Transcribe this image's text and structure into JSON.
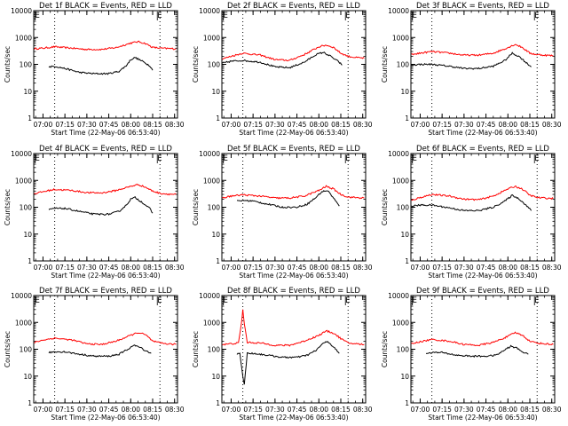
{
  "figure": {
    "ylabel": "Counts/sec",
    "xlabel": "Start Time (22-May-06 06:53:40)",
    "x_tick_labels": [
      "07:00",
      "07:15",
      "07:30",
      "07:45",
      "08:00",
      "08:15",
      "08:30"
    ],
    "y_tick_labels": [
      "1",
      "10",
      "100",
      "1000",
      "10000"
    ],
    "marker_E": "E",
    "colors": {
      "events": "#000000",
      "lld": "#ff0000"
    }
  },
  "chart_data": [
    {
      "type": "line",
      "title": "Det 1f BLACK = Events, RED = LLD",
      "xlabel": "Start Time (22-May-06 06:53:40)",
      "ylabel": "Counts/sec",
      "xlim": [
        "06:53:40",
        "08:32"
      ],
      "ylim": [
        1,
        10000
      ],
      "yscale": "log",
      "vlines": [
        "07:08",
        "08:20"
      ],
      "series": [
        {
          "name": "LLD",
          "color": "#ff0000",
          "x": [
            "06:54",
            "07:00",
            "07:08",
            "07:20",
            "07:30",
            "07:40",
            "07:50",
            "08:00",
            "08:05",
            "08:10",
            "08:15",
            "08:20",
            "08:25",
            "08:31"
          ],
          "y": [
            380,
            400,
            450,
            400,
            360,
            360,
            420,
            620,
            700,
            600,
            430,
            400,
            390,
            380
          ]
        },
        {
          "name": "Events",
          "color": "#000000",
          "x": [
            "07:04",
            "07:08",
            "07:15",
            "07:25",
            "07:35",
            "07:45",
            "07:52",
            "07:57",
            "08:00",
            "08:03",
            "08:08",
            "08:13",
            "08:15"
          ],
          "y": [
            80,
            85,
            70,
            50,
            45,
            45,
            55,
            90,
            150,
            180,
            130,
            90,
            60
          ]
        }
      ]
    },
    {
      "type": "line",
      "title": "Det 2f BLACK = Events, RED = LLD",
      "xlabel": "Start Time (22-May-06 06:53:40)",
      "ylabel": "Counts/sec",
      "xlim": [
        "06:53:40",
        "08:32"
      ],
      "ylim": [
        1,
        10000
      ],
      "yscale": "log",
      "vlines": [
        "07:08",
        "08:20"
      ],
      "series": [
        {
          "name": "LLD",
          "color": "#ff0000",
          "x": [
            "06:54",
            "07:00",
            "07:08",
            "07:20",
            "07:30",
            "07:40",
            "07:50",
            "08:00",
            "08:05",
            "08:10",
            "08:15",
            "08:20",
            "08:25",
            "08:31"
          ],
          "y": [
            160,
            200,
            260,
            220,
            150,
            140,
            230,
            450,
            520,
            430,
            260,
            200,
            180,
            170
          ]
        },
        {
          "name": "Events",
          "color": "#000000",
          "x": [
            "06:54",
            "07:00",
            "07:08",
            "07:20",
            "07:30",
            "07:40",
            "07:50",
            "07:58",
            "08:03",
            "08:08",
            "08:13",
            "08:16"
          ],
          "y": [
            110,
            130,
            140,
            120,
            80,
            75,
            120,
            230,
            280,
            200,
            130,
            95
          ]
        }
      ]
    },
    {
      "type": "line",
      "title": "Det 3f BLACK = Events, RED = LLD",
      "xlabel": "Start Time (22-May-06 06:53:40)",
      "ylabel": "Counts/sec",
      "xlim": [
        "06:53:40",
        "08:32"
      ],
      "ylim": [
        1,
        10000
      ],
      "yscale": "log",
      "vlines": [
        "07:08",
        "08:20"
      ],
      "series": [
        {
          "name": "LLD",
          "color": "#ff0000",
          "x": [
            "06:54",
            "07:00",
            "07:08",
            "07:20",
            "07:30",
            "07:40",
            "07:50",
            "08:00",
            "08:05",
            "08:10",
            "08:15",
            "08:20",
            "08:25",
            "08:31"
          ],
          "y": [
            230,
            260,
            300,
            260,
            220,
            220,
            260,
            420,
            560,
            420,
            260,
            230,
            220,
            210
          ]
        },
        {
          "name": "Events",
          "color": "#000000",
          "x": [
            "06:54",
            "07:00",
            "07:08",
            "07:20",
            "07:30",
            "07:40",
            "07:50",
            "07:58",
            "08:03",
            "08:08",
            "08:13",
            "08:16"
          ],
          "y": [
            95,
            100,
            100,
            85,
            70,
            70,
            85,
            140,
            260,
            190,
            110,
            80
          ]
        }
      ]
    },
    {
      "type": "line",
      "title": "Det 4f BLACK = Events, RED = LLD",
      "xlabel": "Start Time (22-May-06 06:53:40)",
      "ylabel": "Counts/sec",
      "xlim": [
        "06:53:40",
        "08:32"
      ],
      "ylim": [
        1,
        10000
      ],
      "yscale": "log",
      "vlines": [
        "07:08",
        "08:20"
      ],
      "series": [
        {
          "name": "LLD",
          "color": "#ff0000",
          "x": [
            "06:54",
            "07:00",
            "07:08",
            "07:20",
            "07:30",
            "07:40",
            "07:50",
            "08:00",
            "08:05",
            "08:10",
            "08:15",
            "08:20",
            "08:25",
            "08:31"
          ],
          "y": [
            320,
            380,
            460,
            420,
            350,
            340,
            420,
            600,
            700,
            560,
            400,
            330,
            310,
            300
          ]
        },
        {
          "name": "Events",
          "color": "#000000",
          "x": [
            "07:04",
            "07:08",
            "07:15",
            "07:25",
            "07:35",
            "07:45",
            "07:52",
            "07:57",
            "08:00",
            "08:03",
            "08:08",
            "08:13",
            "08:15"
          ],
          "y": [
            80,
            90,
            90,
            70,
            55,
            55,
            70,
            120,
            200,
            230,
            150,
            90,
            60
          ]
        }
      ]
    },
    {
      "type": "line",
      "title": "Det 5f BLACK = Events, RED = LLD",
      "xlabel": "Start Time (22-May-06 06:53:40)",
      "ylabel": "Counts/sec",
      "xlim": [
        "06:53:40",
        "08:32"
      ],
      "ylim": [
        1,
        10000
      ],
      "yscale": "log",
      "vlines": [
        "07:08",
        "08:20"
      ],
      "series": [
        {
          "name": "LLD",
          "color": "#ff0000",
          "x": [
            "06:54",
            "07:00",
            "07:08",
            "07:20",
            "07:30",
            "07:40",
            "07:50",
            "08:00",
            "08:05",
            "08:10",
            "08:15",
            "08:20",
            "08:25",
            "08:31"
          ],
          "y": [
            220,
            260,
            290,
            260,
            220,
            220,
            260,
            420,
            600,
            480,
            300,
            240,
            230,
            220
          ]
        },
        {
          "name": "Events",
          "color": "#000000",
          "x": [
            "07:04",
            "07:08",
            "07:15",
            "07:25",
            "07:35",
            "07:45",
            "07:52",
            "07:58",
            "08:02",
            "08:06",
            "08:10",
            "08:14"
          ],
          "y": [
            170,
            180,
            170,
            130,
            100,
            100,
            130,
            230,
            380,
            420,
            220,
            110
          ]
        }
      ]
    },
    {
      "type": "line",
      "title": "Det 6f BLACK = Events, RED = LLD",
      "xlabel": "Start Time (22-May-06 06:53:40)",
      "ylabel": "Counts/sec",
      "xlim": [
        "06:53:40",
        "08:32"
      ],
      "ylim": [
        1,
        10000
      ],
      "yscale": "log",
      "vlines": [
        "07:08",
        "08:20"
      ],
      "series": [
        {
          "name": "LLD",
          "color": "#ff0000",
          "x": [
            "06:54",
            "07:00",
            "07:08",
            "07:20",
            "07:30",
            "07:40",
            "07:50",
            "08:00",
            "08:05",
            "08:10",
            "08:15",
            "08:20",
            "08:25",
            "08:31"
          ],
          "y": [
            180,
            230,
            300,
            260,
            200,
            190,
            260,
            480,
            600,
            470,
            280,
            230,
            220,
            210
          ]
        },
        {
          "name": "Events",
          "color": "#000000",
          "x": [
            "06:54",
            "07:00",
            "07:08",
            "07:20",
            "07:30",
            "07:40",
            "07:50",
            "07:58",
            "08:03",
            "08:08",
            "08:13",
            "08:16"
          ],
          "y": [
            110,
            120,
            120,
            95,
            75,
            75,
            100,
            170,
            280,
            200,
            110,
            75
          ]
        }
      ]
    },
    {
      "type": "line",
      "title": "Det 7f BLACK = Events, RED = LLD",
      "xlabel": "Start Time (22-May-06 06:53:40)",
      "ylabel": "Counts/sec",
      "xlim": [
        "06:53:40",
        "08:32"
      ],
      "ylim": [
        1,
        10000
      ],
      "yscale": "log",
      "vlines": [
        "07:08",
        "08:20"
      ],
      "series": [
        {
          "name": "LLD",
          "color": "#ff0000",
          "x": [
            "06:54",
            "07:00",
            "07:08",
            "07:20",
            "07:30",
            "07:40",
            "07:50",
            "08:00",
            "08:05",
            "08:10",
            "08:15",
            "08:20",
            "08:25",
            "08:31"
          ],
          "y": [
            180,
            220,
            260,
            220,
            160,
            150,
            200,
            330,
            420,
            350,
            200,
            170,
            160,
            150
          ]
        },
        {
          "name": "Events",
          "color": "#000000",
          "x": [
            "07:04",
            "07:08",
            "07:15",
            "07:25",
            "07:35",
            "07:45",
            "07:52",
            "07:58",
            "08:02",
            "08:06",
            "08:10",
            "08:14"
          ],
          "y": [
            75,
            80,
            80,
            65,
            55,
            55,
            65,
            100,
            140,
            120,
            90,
            70
          ]
        }
      ]
    },
    {
      "type": "line",
      "title": "Det 8f BLACK = Events, RED = LLD",
      "xlabel": "Start Time (22-May-06 06:53:40)",
      "ylabel": "Counts/sec",
      "xlim": [
        "06:53:40",
        "08:32"
      ],
      "ylim": [
        1,
        10000
      ],
      "yscale": "log",
      "vlines": [
        "07:08",
        "08:20"
      ],
      "series": [
        {
          "name": "LLD",
          "color": "#ff0000",
          "x": [
            "06:54",
            "07:00",
            "07:05",
            "07:07",
            "07:08",
            "07:09",
            "07:11",
            "07:20",
            "07:30",
            "07:40",
            "07:50",
            "08:00",
            "08:05",
            "08:10",
            "08:15",
            "08:20",
            "08:25",
            "08:31"
          ],
          "y": [
            150,
            160,
            170,
            900,
            3000,
            900,
            180,
            170,
            140,
            140,
            200,
            330,
            480,
            400,
            250,
            170,
            160,
            150
          ]
        },
        {
          "name": "Events",
          "color": "#000000",
          "x": [
            "07:04",
            "07:06",
            "07:08",
            "07:09",
            "07:11",
            "07:15",
            "07:25",
            "07:35",
            "07:45",
            "07:52",
            "07:58",
            "08:02",
            "08:06",
            "08:10",
            "08:14"
          ],
          "y": [
            65,
            70,
            10,
            5,
            70,
            70,
            60,
            50,
            50,
            60,
            90,
            150,
            200,
            120,
            70
          ]
        }
      ]
    },
    {
      "type": "line",
      "title": "Det 9f BLACK = Events, RED = LLD",
      "xlabel": "Start Time (22-May-06 06:53:40)",
      "ylabel": "Counts/sec",
      "xlim": [
        "06:53:40",
        "08:32"
      ],
      "ylim": [
        1,
        10000
      ],
      "yscale": "log",
      "vlines": [
        "07:08",
        "08:20"
      ],
      "series": [
        {
          "name": "LLD",
          "color": "#ff0000",
          "x": [
            "06:54",
            "07:00",
            "07:08",
            "07:20",
            "07:30",
            "07:40",
            "07:50",
            "08:00",
            "08:05",
            "08:10",
            "08:15",
            "08:20",
            "08:25",
            "08:31"
          ],
          "y": [
            160,
            190,
            230,
            200,
            150,
            140,
            180,
            300,
            420,
            330,
            200,
            170,
            160,
            150
          ]
        },
        {
          "name": "Events",
          "color": "#000000",
          "x": [
            "07:04",
            "07:08",
            "07:15",
            "07:25",
            "07:35",
            "07:45",
            "07:52",
            "07:58",
            "08:02",
            "08:06",
            "08:10",
            "08:14"
          ],
          "y": [
            70,
            75,
            75,
            60,
            55,
            55,
            60,
            95,
            130,
            110,
            80,
            65
          ]
        }
      ]
    }
  ]
}
